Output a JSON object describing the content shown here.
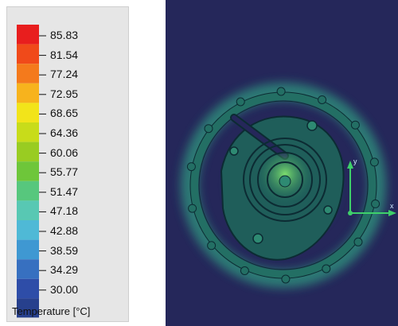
{
  "legend": {
    "title": "Temperature [°C]",
    "ticks": [
      "85.83",
      "81.54",
      "77.24",
      "72.95",
      "68.65",
      "64.36",
      "60.06",
      "55.77",
      "51.47",
      "47.18",
      "42.88",
      "38.59",
      "34.29",
      "30.00"
    ],
    "colors": [
      "#e81e1e",
      "#f04a1a",
      "#f47a1c",
      "#f7b31d",
      "#f2e41a",
      "#c8dc1a",
      "#99cc22",
      "#6ec63a",
      "#57c77d",
      "#58c8b3",
      "#4fb9d6",
      "#3f98d2",
      "#3770c0",
      "#2e4da8"
    ],
    "bottom_swatch": "#27408d"
  },
  "viewport": {
    "background": "#25275a",
    "glow_color": "#2f8a7a",
    "part_color": "#226f64",
    "line_color": "#0c2b33",
    "hotspot_color": "#6bd06a",
    "triad": {
      "x_label": "x",
      "y_label": "y"
    }
  }
}
